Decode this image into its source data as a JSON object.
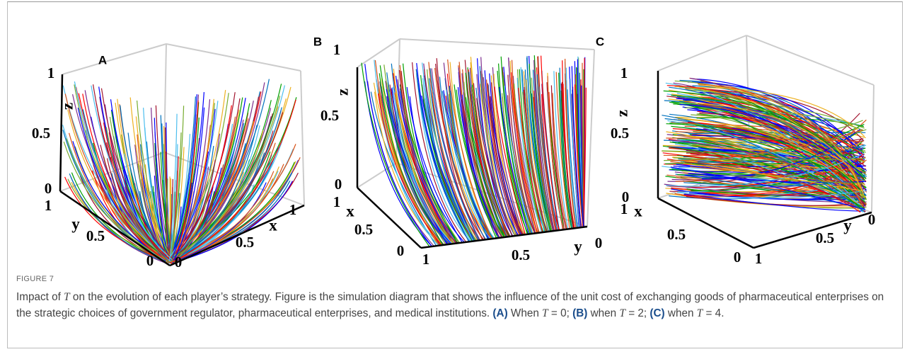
{
  "panels": [
    {
      "label": "A",
      "axes": {
        "x": {
          "label": "x",
          "ticks": [
            0,
            0.5,
            1
          ]
        },
        "y": {
          "label": "y",
          "ticks": [
            1,
            0.5,
            0
          ]
        },
        "z": {
          "label": "z",
          "ticks": [
            0,
            0.5,
            1
          ]
        }
      }
    },
    {
      "label": "B",
      "axes": {
        "x": {
          "label": "x",
          "ticks": [
            1,
            0.5,
            0
          ]
        },
        "y": {
          "label": "y",
          "ticks": [
            1,
            0.5,
            0
          ]
        },
        "z": {
          "label": "z",
          "ticks": [
            0,
            0.5,
            1
          ]
        }
      }
    },
    {
      "label": "C",
      "axes": {
        "x": {
          "label": "x",
          "ticks": [
            1,
            0.5,
            0
          ]
        },
        "y": {
          "label": "y",
          "ticks": [
            1,
            0.5,
            0
          ]
        },
        "z": {
          "label": "z",
          "ticks": [
            0,
            0.5,
            1
          ]
        }
      }
    }
  ],
  "figure_label": "FIGURE 7",
  "caption": [
    {
      "text": "Impact of "
    },
    {
      "text": "T",
      "style": "italic"
    },
    {
      "text": " on the evolution of each player’s strategy. Figure is the simulation diagram that shows the influence of the unit cost of exchanging goods of pharmaceutical enterprises on the strategic choices of government regulator, pharmaceutical enterprises, and medical institutions. "
    },
    {
      "text": "(A)",
      "style": "bold"
    },
    {
      "text": " When "
    },
    {
      "text": "T",
      "style": "italic"
    },
    {
      "text": " = 0; "
    },
    {
      "text": "(B)",
      "style": "bold"
    },
    {
      "text": " when "
    },
    {
      "text": "T",
      "style": "italic"
    },
    {
      "text": " = 2; "
    },
    {
      "text": "(C)",
      "style": "bold"
    },
    {
      "text": " when "
    },
    {
      "text": "T",
      "style": "italic"
    },
    {
      "text": " = 4."
    }
  ]
}
